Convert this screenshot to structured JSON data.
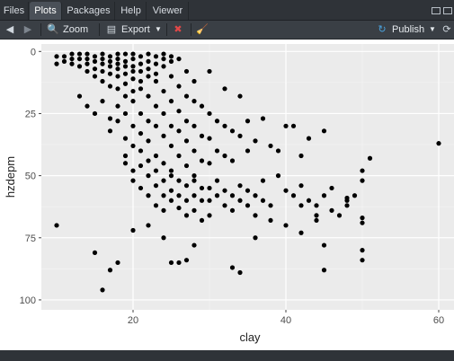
{
  "tabs": [
    {
      "label": "Files",
      "active": false
    },
    {
      "label": "Plots",
      "active": true
    },
    {
      "label": "Packages",
      "active": false
    },
    {
      "label": "Help",
      "active": false
    },
    {
      "label": "Viewer",
      "active": false
    }
  ],
  "toolbar": {
    "zoom_label": "Zoom",
    "export_label": "Export",
    "publish_label": "Publish"
  },
  "colors": {
    "panel_bg": "#ebebeb",
    "grid_major": "#ffffff",
    "point": "#000000",
    "accent_publish": "#4aa3df"
  },
  "chart_data": {
    "type": "scatter",
    "xlabel": "clay",
    "ylabel": "hzdepm",
    "xlim": [
      8,
      62
    ],
    "ylim": [
      104,
      -3
    ],
    "y_reversed": true,
    "xticks": [
      20,
      40,
      60
    ],
    "yticks": [
      0,
      25,
      50,
      75,
      100
    ],
    "grid": true,
    "points": [
      [
        10,
        2
      ],
      [
        10,
        5
      ],
      [
        11,
        2
      ],
      [
        11,
        4
      ],
      [
        12,
        1
      ],
      [
        12,
        3
      ],
      [
        12,
        5
      ],
      [
        13,
        1
      ],
      [
        13,
        3
      ],
      [
        13,
        6
      ],
      [
        14,
        1
      ],
      [
        14,
        3
      ],
      [
        14,
        5
      ],
      [
        14,
        8
      ],
      [
        15,
        2
      ],
      [
        15,
        4
      ],
      [
        15,
        7
      ],
      [
        15,
        10
      ],
      [
        16,
        1
      ],
      [
        16,
        3
      ],
      [
        16,
        5
      ],
      [
        16,
        8
      ],
      [
        16,
        12
      ],
      [
        17,
        2
      ],
      [
        17,
        4
      ],
      [
        17,
        6
      ],
      [
        17,
        9
      ],
      [
        17,
        14
      ],
      [
        18,
        1
      ],
      [
        18,
        3
      ],
      [
        18,
        5
      ],
      [
        18,
        7
      ],
      [
        18,
        10
      ],
      [
        18,
        15
      ],
      [
        19,
        1
      ],
      [
        19,
        4
      ],
      [
        19,
        6
      ],
      [
        19,
        9
      ],
      [
        19,
        13
      ],
      [
        20,
        1
      ],
      [
        20,
        3
      ],
      [
        20,
        6
      ],
      [
        20,
        8
      ],
      [
        20,
        11
      ],
      [
        20,
        16
      ],
      [
        21,
        2
      ],
      [
        21,
        5
      ],
      [
        21,
        8
      ],
      [
        21,
        12
      ],
      [
        22,
        1
      ],
      [
        22,
        4
      ],
      [
        22,
        7
      ],
      [
        22,
        10
      ],
      [
        23,
        2
      ],
      [
        23,
        5
      ],
      [
        23,
        9
      ],
      [
        24,
        1
      ],
      [
        24,
        3
      ],
      [
        24,
        6
      ],
      [
        25,
        2
      ],
      [
        25,
        4
      ],
      [
        26,
        3
      ],
      [
        27,
        8
      ],
      [
        28,
        12
      ],
      [
        30,
        8
      ],
      [
        32,
        15
      ],
      [
        34,
        18
      ],
      [
        13,
        18
      ],
      [
        14,
        22
      ],
      [
        15,
        25
      ],
      [
        16,
        20
      ],
      [
        17,
        27
      ],
      [
        17,
        32
      ],
      [
        18,
        22
      ],
      [
        18,
        28
      ],
      [
        19,
        18
      ],
      [
        19,
        25
      ],
      [
        19,
        35
      ],
      [
        20,
        20
      ],
      [
        20,
        30
      ],
      [
        20,
        38
      ],
      [
        21,
        15
      ],
      [
        21,
        25
      ],
      [
        21,
        33
      ],
      [
        21,
        40
      ],
      [
        22,
        18
      ],
      [
        22,
        28
      ],
      [
        22,
        36
      ],
      [
        22,
        44
      ],
      [
        23,
        12
      ],
      [
        23,
        22
      ],
      [
        23,
        30
      ],
      [
        23,
        42
      ],
      [
        24,
        16
      ],
      [
        24,
        25
      ],
      [
        24,
        34
      ],
      [
        24,
        45
      ],
      [
        25,
        10
      ],
      [
        25,
        20
      ],
      [
        25,
        30
      ],
      [
        25,
        38
      ],
      [
        25,
        48
      ],
      [
        26,
        14
      ],
      [
        26,
        24
      ],
      [
        26,
        32
      ],
      [
        26,
        42
      ],
      [
        27,
        18
      ],
      [
        27,
        28
      ],
      [
        27,
        36
      ],
      [
        27,
        46
      ],
      [
        28,
        20
      ],
      [
        28,
        30
      ],
      [
        28,
        40
      ],
      [
        28,
        50
      ],
      [
        29,
        22
      ],
      [
        29,
        34
      ],
      [
        29,
        44
      ],
      [
        30,
        25
      ],
      [
        30,
        35
      ],
      [
        30,
        45
      ],
      [
        31,
        28
      ],
      [
        31,
        40
      ],
      [
        32,
        30
      ],
      [
        32,
        42
      ],
      [
        33,
        32
      ],
      [
        33,
        44
      ],
      [
        34,
        34
      ],
      [
        35,
        28
      ],
      [
        35,
        40
      ],
      [
        36,
        36
      ],
      [
        37,
        27
      ],
      [
        38,
        38
      ],
      [
        39,
        40
      ],
      [
        40,
        30
      ],
      [
        41,
        30
      ],
      [
        42,
        42
      ],
      [
        43,
        35
      ],
      [
        45,
        32
      ],
      [
        19,
        42
      ],
      [
        19,
        45
      ],
      [
        20,
        48
      ],
      [
        20,
        52
      ],
      [
        21,
        46
      ],
      [
        21,
        55
      ],
      [
        22,
        50
      ],
      [
        22,
        58
      ],
      [
        23,
        48
      ],
      [
        23,
        54
      ],
      [
        23,
        62
      ],
      [
        24,
        52
      ],
      [
        24,
        58
      ],
      [
        24,
        64
      ],
      [
        25,
        50
      ],
      [
        25,
        56
      ],
      [
        25,
        60
      ],
      [
        26,
        52
      ],
      [
        26,
        58
      ],
      [
        26,
        63
      ],
      [
        27,
        54
      ],
      [
        27,
        60
      ],
      [
        27,
        66
      ],
      [
        28,
        52
      ],
      [
        28,
        58
      ],
      [
        28,
        64
      ],
      [
        29,
        55
      ],
      [
        29,
        60
      ],
      [
        29,
        68
      ],
      [
        30,
        55
      ],
      [
        30,
        60
      ],
      [
        30,
        66
      ],
      [
        31,
        52
      ],
      [
        31,
        58
      ],
      [
        32,
        56
      ],
      [
        32,
        62
      ],
      [
        33,
        58
      ],
      [
        33,
        64
      ],
      [
        34,
        54
      ],
      [
        34,
        60
      ],
      [
        35,
        56
      ],
      [
        35,
        62
      ],
      [
        36,
        58
      ],
      [
        36,
        66
      ],
      [
        37,
        52
      ],
      [
        37,
        60
      ],
      [
        38,
        62
      ],
      [
        39,
        50
      ],
      [
        40,
        56
      ],
      [
        41,
        58
      ],
      [
        42,
        54
      ],
      [
        43,
        60
      ],
      [
        44,
        62
      ],
      [
        45,
        58
      ],
      [
        46,
        64
      ],
      [
        47,
        66
      ],
      [
        48,
        60
      ],
      [
        49,
        58
      ],
      [
        10,
        70
      ],
      [
        15,
        81
      ],
      [
        17,
        88
      ],
      [
        18,
        85
      ],
      [
        16,
        96
      ],
      [
        20,
        72
      ],
      [
        22,
        70
      ],
      [
        24,
        75
      ],
      [
        25,
        85
      ],
      [
        26,
        85
      ],
      [
        27,
        84
      ],
      [
        28,
        78
      ],
      [
        33,
        87
      ],
      [
        34,
        89
      ],
      [
        36,
        75
      ],
      [
        38,
        68
      ],
      [
        40,
        70
      ],
      [
        42,
        73
      ],
      [
        44,
        68
      ],
      [
        45,
        78
      ],
      [
        45,
        88
      ],
      [
        48,
        59
      ],
      [
        50,
        48
      ],
      [
        50,
        52
      ],
      [
        50,
        67
      ],
      [
        50,
        69
      ],
      [
        50,
        80
      ],
      [
        50,
        84
      ],
      [
        51,
        43
      ],
      [
        60,
        37
      ],
      [
        48,
        62
      ],
      [
        46,
        55
      ],
      [
        44,
        66
      ],
      [
        42,
        62
      ]
    ]
  }
}
